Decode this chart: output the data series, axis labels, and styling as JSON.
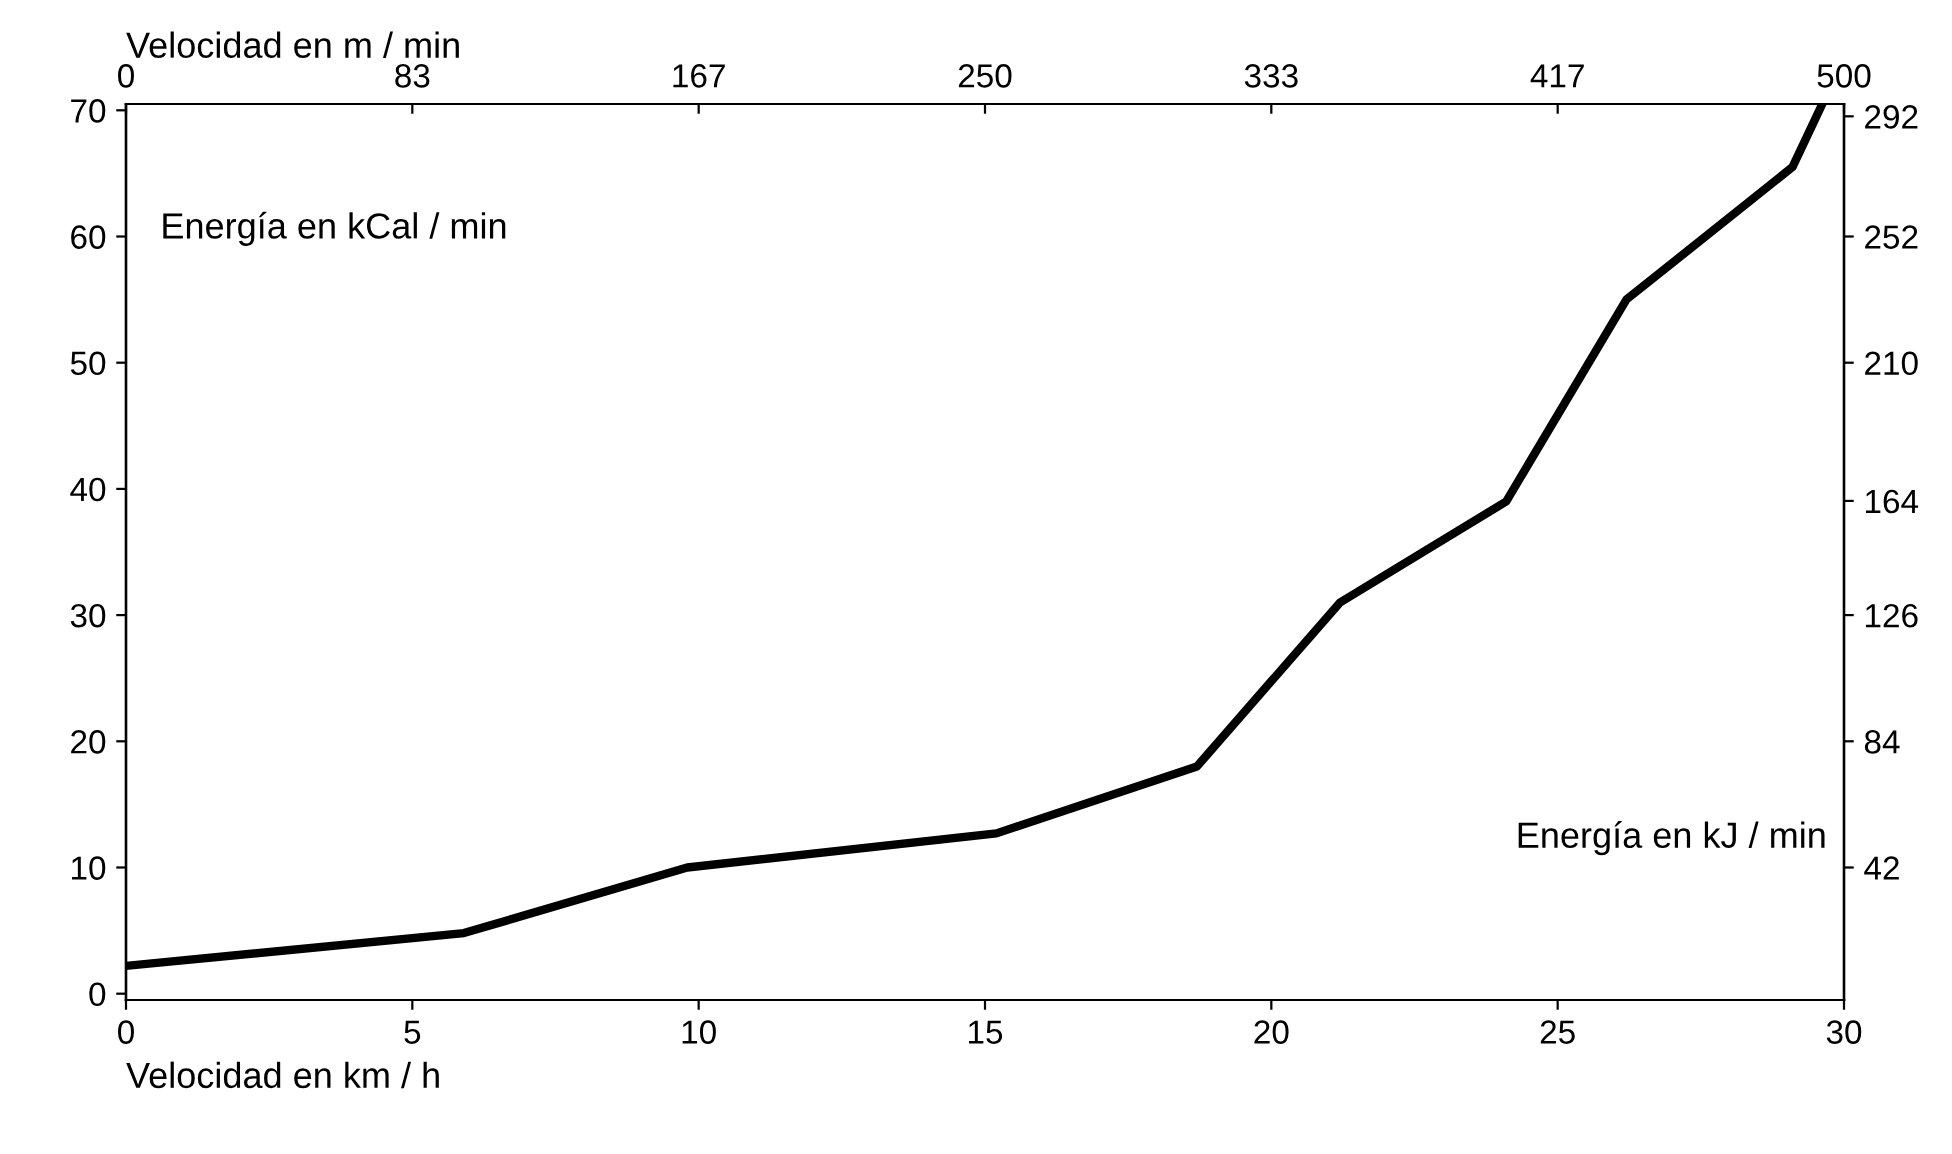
{
  "chart_data": {
    "type": "line",
    "xlabel": "Velocidad en km / h",
    "x2label": "Velocidad en m / min",
    "ylabel": "Energía en kCal / min",
    "y2label": "Energía en kJ / min",
    "x": [
      0,
      5.9,
      9.8,
      15.2,
      18.7,
      21.2,
      24.1,
      26.2,
      29.1,
      29.6
    ],
    "series": [
      {
        "color": "#000000",
        "values": [
          2.2,
          4.8,
          10,
          12.7,
          18,
          31,
          39,
          55,
          65.5,
          70.3
        ]
      }
    ],
    "xlim": [
      0,
      30
    ],
    "xticks": [
      0,
      5,
      10,
      15,
      20,
      25,
      30
    ],
    "x2lim": [
      0,
      500
    ],
    "x2ticks": [
      0,
      {
        "value": 83.33,
        "label": "83"
      },
      {
        "value": 166.67,
        "label": "167"
      },
      250,
      {
        "value": 333.33,
        "label": "333"
      },
      {
        "value": 416.67,
        "label": "417"
      },
      500
    ],
    "ylim": [
      -0.5,
      70.5
    ],
    "yticks": [
      0,
      10,
      20,
      30,
      40,
      50,
      60,
      70
    ],
    "y2lim": [
      -2.1,
      296.1
    ],
    "y2ticks": [
      42,
      84,
      126,
      164,
      210,
      252,
      292
    ],
    "grid": false,
    "legend": false,
    "marker": "none",
    "line_style": "solid"
  }
}
